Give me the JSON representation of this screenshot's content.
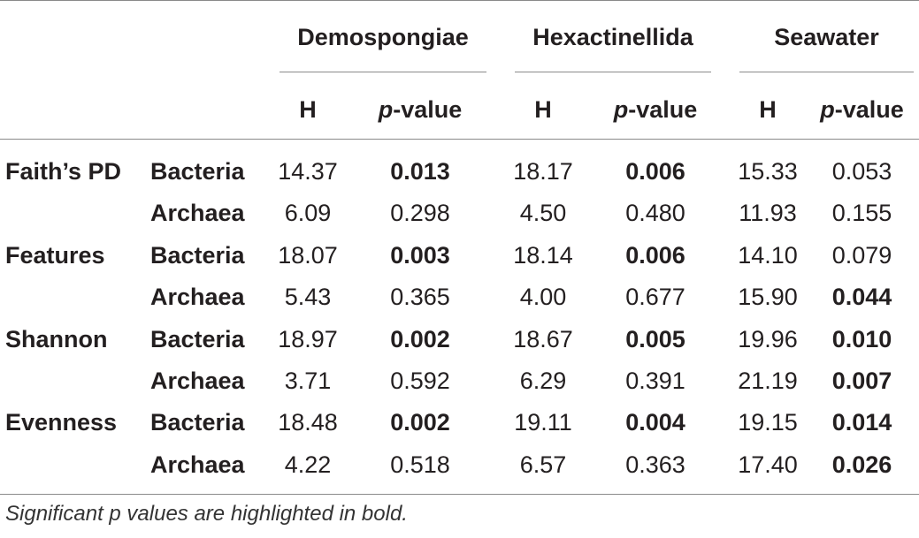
{
  "groups": [
    "Demospongiae",
    "Hexactinellida",
    "Seawater"
  ],
  "subheaders": {
    "h": "H",
    "p_italic": "p",
    "p_rest": "-value"
  },
  "rows": [
    {
      "metric": "Faith’s PD",
      "domain": "Bacteria",
      "cells": [
        [
          "14.37",
          "0.013",
          true
        ],
        [
          "18.17",
          "0.006",
          true
        ],
        [
          "15.33",
          "0.053",
          false
        ]
      ]
    },
    {
      "metric": "",
      "domain": "Archaea",
      "cells": [
        [
          "6.09",
          "0.298",
          false
        ],
        [
          "4.50",
          "0.480",
          false
        ],
        [
          "11.93",
          "0.155",
          false
        ]
      ]
    },
    {
      "metric": "Features",
      "domain": "Bacteria",
      "cells": [
        [
          "18.07",
          "0.003",
          true
        ],
        [
          "18.14",
          "0.006",
          true
        ],
        [
          "14.10",
          "0.079",
          false
        ]
      ]
    },
    {
      "metric": "",
      "domain": "Archaea",
      "cells": [
        [
          "5.43",
          "0.365",
          false
        ],
        [
          "4.00",
          "0.677",
          false
        ],
        [
          "15.90",
          "0.044",
          true
        ]
      ]
    },
    {
      "metric": "Shannon",
      "domain": "Bacteria",
      "cells": [
        [
          "18.97",
          "0.002",
          true
        ],
        [
          "18.67",
          "0.005",
          true
        ],
        [
          "19.96",
          "0.010",
          true
        ]
      ]
    },
    {
      "metric": "",
      "domain": "Archaea",
      "cells": [
        [
          "3.71",
          "0.592",
          false
        ],
        [
          "6.29",
          "0.391",
          false
        ],
        [
          "21.19",
          "0.007",
          true
        ]
      ]
    },
    {
      "metric": "Evenness",
      "domain": "Bacteria",
      "cells": [
        [
          "18.48",
          "0.002",
          true
        ],
        [
          "19.11",
          "0.004",
          true
        ],
        [
          "19.15",
          "0.014",
          true
        ]
      ]
    },
    {
      "metric": "",
      "domain": "Archaea",
      "cells": [
        [
          "4.22",
          "0.518",
          false
        ],
        [
          "6.57",
          "0.363",
          false
        ],
        [
          "17.40",
          "0.026",
          true
        ]
      ]
    }
  ],
  "footnote": "Significant p values are highlighted in bold."
}
